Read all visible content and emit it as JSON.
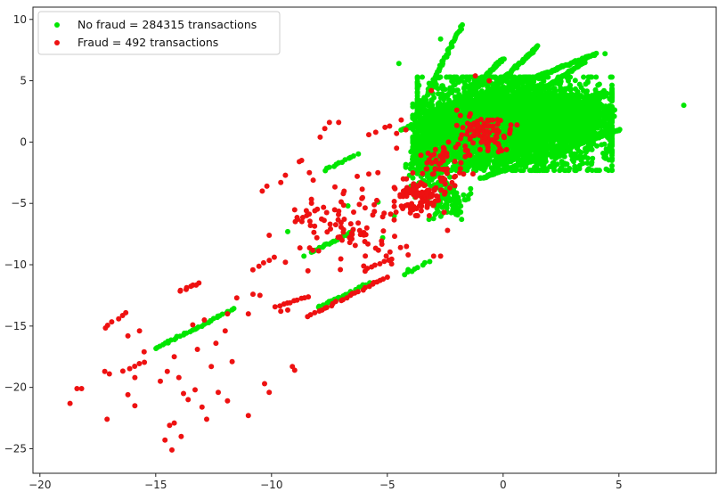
{
  "chart_data": {
    "type": "scatter",
    "title": "",
    "xlabel": "",
    "ylabel": "",
    "xlim": [
      -20.3,
      9.2
    ],
    "ylim": [
      -27.0,
      11.0
    ],
    "x_ticks": [
      -20,
      -15,
      -10,
      -5,
      0,
      5
    ],
    "x_tick_labels": [
      "−20",
      "−15",
      "−10",
      "−5",
      "0",
      "5"
    ],
    "y_ticks": [
      10,
      5,
      0,
      -5,
      -10,
      -15,
      -20,
      -25
    ],
    "y_tick_labels": [
      "10",
      "5",
      "0",
      "−5",
      "−10",
      "−15",
      "−20",
      "−25"
    ],
    "grid": false,
    "legend_position": "top-left",
    "series": [
      {
        "name": "No fraud = 284315 transactions",
        "color": "#00e600",
        "clusters": [
          {
            "cx": 0.5,
            "cy": 1.5,
            "rx": 4.2,
            "ry": 3.8,
            "n": 3200
          },
          {
            "cx": 2.0,
            "cy": 2.0,
            "rx": 2.6,
            "ry": 1.8,
            "n": 1400
          },
          {
            "cx": -1.5,
            "cy": 0.5,
            "rx": 2.4,
            "ry": 2.6,
            "n": 900
          },
          {
            "cx": -3.2,
            "cy": -1.8,
            "rx": 1.0,
            "ry": 1.8,
            "n": 160
          },
          {
            "cx": -2.3,
            "cy": -4.8,
            "rx": 0.9,
            "ry": 1.5,
            "n": 90
          }
        ],
        "streaks": [
          [
            -4.4,
            1.0,
            4.0,
            7.2,
            240
          ],
          [
            -3.8,
            2.0,
            -1.8,
            9.5,
            60
          ],
          [
            -3.9,
            -0.5,
            0.0,
            6.8,
            200
          ],
          [
            -3.5,
            -1.0,
            1.5,
            7.8,
            220
          ],
          [
            -3.0,
            -1.5,
            3.5,
            6.5,
            240
          ],
          [
            -2.5,
            -1.5,
            4.5,
            4.0,
            240
          ],
          [
            -2.0,
            -2.0,
            4.8,
            2.6,
            240
          ],
          [
            -1.0,
            -3.0,
            5.0,
            1.0,
            200
          ],
          [
            -15.0,
            -16.8,
            -11.6,
            -13.6,
            36
          ],
          [
            -8.3,
            -9.0,
            -6.5,
            -7.3,
            24
          ],
          [
            -8.0,
            -13.5,
            -5.8,
            -11.5,
            22
          ],
          [
            -4.3,
            -10.8,
            -3.2,
            -9.7,
            8
          ],
          [
            -7.7,
            -2.3,
            -6.3,
            -1.0,
            12
          ]
        ],
        "points": [
          [
            7.8,
            3.0
          ],
          [
            4.8,
            2.1
          ],
          [
            4.4,
            7.2
          ],
          [
            -9.3,
            -7.3
          ],
          [
            -4.7,
            -6.0
          ],
          [
            -5.2,
            -7.8
          ],
          [
            -6.7,
            -5.2
          ],
          [
            -4.5,
            6.4
          ],
          [
            -1.8,
            9.2
          ],
          [
            -2.7,
            8.4
          ],
          [
            -5.4,
            -4.9
          ],
          [
            -3.8,
            -4.5
          ],
          [
            -8.6,
            -9.3
          ],
          [
            -4.1,
            -10.4
          ]
        ]
      },
      {
        "name": "Fraud = 492 transactions",
        "color": "#ee1111",
        "clusters": [
          {
            "cx": -0.8,
            "cy": 0.8,
            "rx": 1.2,
            "ry": 1.5,
            "n": 90
          },
          {
            "cx": -3.5,
            "cy": -4.5,
            "rx": 1.2,
            "ry": 1.5,
            "n": 100
          },
          {
            "cx": -6.5,
            "cy": -6.5,
            "rx": 2.5,
            "ry": 4.0,
            "n": 90
          },
          {
            "cx": -2.6,
            "cy": -1.8,
            "rx": 1.3,
            "ry": 1.8,
            "n": 60
          }
        ],
        "streaks": [
          [
            -14.0,
            -12.2,
            -13.1,
            -11.5,
            8
          ],
          [
            -9.8,
            -13.4,
            -8.4,
            -12.6,
            10
          ],
          [
            -8.4,
            -14.2,
            -5.0,
            -11.0,
            26
          ],
          [
            -17.2,
            -15.2,
            -16.3,
            -13.9,
            6
          ],
          [
            -16.4,
            -18.7,
            -15.5,
            -17.9,
            5
          ],
          [
            -6.0,
            -10.5,
            -4.8,
            -9.5,
            8
          ],
          [
            -9.0,
            -6.5,
            -7.8,
            -5.3,
            8
          ],
          [
            -10.8,
            -10.4,
            -9.9,
            -9.4,
            5
          ]
        ],
        "points": [
          [
            -18.7,
            -21.3
          ],
          [
            -18.4,
            -20.1
          ],
          [
            -18.2,
            -20.1
          ],
          [
            -17.1,
            -22.6
          ],
          [
            -17.2,
            -18.7
          ],
          [
            -17.0,
            -18.9
          ],
          [
            -16.2,
            -15.8
          ],
          [
            -15.7,
            -15.4
          ],
          [
            -15.5,
            -17.1
          ],
          [
            -14.6,
            -24.3
          ],
          [
            -14.4,
            -23.1
          ],
          [
            -14.2,
            -22.9
          ],
          [
            -14.0,
            -19.2
          ],
          [
            -13.8,
            -20.5
          ],
          [
            -13.6,
            -21.0
          ],
          [
            -13.3,
            -20.2
          ],
          [
            -13.0,
            -21.6
          ],
          [
            -12.8,
            -22.6
          ],
          [
            -12.3,
            -20.4
          ],
          [
            -11.9,
            -21.1
          ],
          [
            -11.0,
            -22.3
          ],
          [
            -10.1,
            -20.4
          ],
          [
            -10.3,
            -19.7
          ],
          [
            -14.3,
            -25.1
          ],
          [
            -13.9,
            -24.0
          ],
          [
            -16.2,
            -20.6
          ],
          [
            -15.9,
            -21.5
          ],
          [
            -14.8,
            -19.5
          ],
          [
            -14.5,
            -18.7
          ],
          [
            -14.2,
            -17.5
          ],
          [
            -15.9,
            -19.2
          ],
          [
            -11.7,
            -17.9
          ],
          [
            -12.6,
            -18.3
          ],
          [
            -11.0,
            -14.0
          ],
          [
            -10.5,
            -12.5
          ],
          [
            -9.6,
            -13.8
          ],
          [
            -9.3,
            -13.7
          ],
          [
            -9.4,
            -9.8
          ],
          [
            -10.1,
            -7.6
          ],
          [
            -10.8,
            -12.4
          ],
          [
            -9.1,
            -18.3
          ],
          [
            -9.0,
            -18.6
          ],
          [
            -7.5,
            1.6
          ],
          [
            -7.7,
            1.1
          ],
          [
            -7.1,
            1.6
          ],
          [
            -7.9,
            0.4
          ],
          [
            -8.8,
            -1.6
          ],
          [
            -9.4,
            -2.7
          ],
          [
            -9.6,
            -3.3
          ],
          [
            -10.2,
            -3.6
          ],
          [
            -10.4,
            -4.0
          ],
          [
            -5.8,
            0.6
          ],
          [
            -5.5,
            0.8
          ],
          [
            -5.1,
            1.2
          ],
          [
            -4.6,
            -0.5
          ],
          [
            -4.9,
            1.3
          ],
          [
            -4.2,
            1.0
          ],
          [
            -6.3,
            -2.8
          ],
          [
            -6.9,
            -4.2
          ],
          [
            -6.1,
            -4.6
          ],
          [
            -5.2,
            -6.1
          ],
          [
            -4.1,
            -9.2
          ],
          [
            -3.0,
            -9.3
          ],
          [
            -2.7,
            -9.3
          ],
          [
            -11.9,
            -14.0
          ],
          [
            -12.4,
            -16.4
          ],
          [
            -13.2,
            -16.9
          ],
          [
            -12.0,
            -15.4
          ],
          [
            -8.2,
            -3.1
          ],
          [
            -8.7,
            -1.5
          ],
          [
            -5.8,
            -2.6
          ],
          [
            -11.5,
            -12.7
          ],
          [
            -12.9,
            -14.5
          ],
          [
            -13.4,
            -14.9
          ],
          [
            -3.1,
            4.2
          ],
          [
            -1.2,
            5.4
          ],
          [
            -0.6,
            5.0
          ],
          [
            -2.0,
            2.6
          ],
          [
            -1.5,
            -1.0
          ],
          [
            -0.2,
            -0.8
          ],
          [
            0.3,
            0.9
          ],
          [
            0.6,
            1.4
          ],
          [
            -4.4,
            1.8
          ],
          [
            -4.6,
            0.7
          ],
          [
            -2.4,
            -7.2
          ]
        ]
      }
    ]
  }
}
